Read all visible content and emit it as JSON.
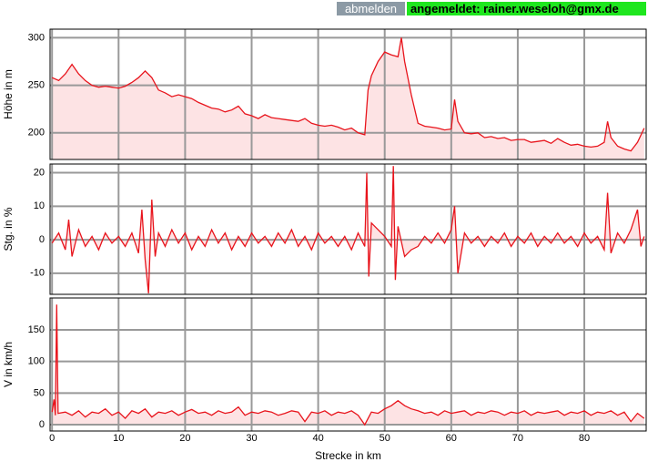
{
  "header": {
    "logout": "abmelden",
    "status": "angemeldet: rainer.weseloh@gmx.de"
  },
  "chart_data": [
    {
      "type": "line",
      "ylabel": "Höhe in m",
      "color": "#e8141c",
      "area_color": "#fde3e4",
      "grid": true,
      "xlim": [
        -0.3,
        89.3
      ],
      "xticks": [
        0,
        10,
        20,
        30,
        40,
        50,
        60,
        70,
        80
      ],
      "ylim": [
        172,
        309
      ],
      "yticks": [
        200,
        250,
        300
      ],
      "x": [
        0,
        1,
        2,
        3,
        4,
        5,
        6,
        7,
        8,
        9,
        10,
        11,
        12,
        13,
        14,
        15,
        16,
        17,
        18,
        19,
        20,
        21,
        22,
        23,
        24,
        25,
        26,
        27,
        28,
        29,
        30,
        31,
        32,
        33,
        34,
        35,
        36,
        37,
        38,
        39,
        40,
        41,
        42,
        43,
        44,
        45,
        46,
        47,
        47.5,
        48,
        49,
        50,
        51,
        52,
        52.5,
        53,
        54,
        55,
        56,
        57,
        58,
        59,
        60,
        60.5,
        61,
        62,
        63,
        64,
        65,
        66,
        67,
        68,
        69,
        70,
        71,
        72,
        73,
        74,
        75,
        76,
        77,
        78,
        79,
        80,
        81,
        82,
        83,
        83.5,
        84,
        85,
        86,
        87,
        88,
        89
      ],
      "values": [
        258,
        255,
        262,
        272,
        262,
        255,
        250,
        248,
        249,
        248,
        247,
        249,
        253,
        258,
        265,
        258,
        245,
        242,
        238,
        240,
        238,
        236,
        232,
        229,
        226,
        225,
        222,
        224,
        228,
        220,
        218,
        215,
        219,
        216,
        215,
        214,
        213,
        212,
        215,
        210,
        208,
        207,
        208,
        206,
        203,
        205,
        200,
        198,
        245,
        260,
        275,
        285,
        282,
        280,
        300,
        275,
        240,
        210,
        207,
        206,
        205,
        203,
        204,
        235,
        212,
        200,
        199,
        200,
        195,
        196,
        194,
        195,
        192,
        193,
        193,
        190,
        191,
        192,
        189,
        194,
        190,
        187,
        188,
        186,
        185,
        186,
        190,
        212,
        195,
        186,
        183,
        181,
        190,
        205
      ]
    },
    {
      "type": "line",
      "ylabel": "Stg. in %",
      "color": "#e8141c",
      "area_color": "#fde3e4",
      "grid": true,
      "xlim": [
        -0.3,
        89.3
      ],
      "xticks": [
        0,
        10,
        20,
        30,
        40,
        50,
        60,
        70,
        80
      ],
      "ylim": [
        -16.3,
        22.6
      ],
      "yticks": [
        -10,
        0,
        10,
        20
      ],
      "x": [
        0,
        1,
        2,
        2.5,
        3,
        4,
        5,
        6,
        7,
        8,
        9,
        10,
        11,
        12,
        13,
        13.5,
        14,
        14.5,
        15,
        15.5,
        16,
        17,
        18,
        19,
        20,
        21,
        22,
        23,
        24,
        25,
        26,
        27,
        28,
        29,
        30,
        31,
        32,
        33,
        34,
        35,
        36,
        37,
        38,
        39,
        40,
        41,
        42,
        43,
        44,
        45,
        46,
        47,
        47.3,
        47.6,
        48,
        49,
        50,
        51,
        51.3,
        51.6,
        52,
        53,
        54,
        55,
        56,
        57,
        58,
        59,
        60,
        60.5,
        61,
        62,
        63,
        64,
        65,
        66,
        67,
        68,
        69,
        70,
        71,
        72,
        73,
        74,
        75,
        76,
        77,
        78,
        79,
        80,
        81,
        82,
        83,
        83.5,
        84,
        85,
        86,
        87,
        88,
        88.5,
        89
      ],
      "values": [
        -1,
        2,
        -3,
        6,
        -5,
        3,
        -2,
        1,
        -3,
        2,
        -1,
        1,
        -2,
        2,
        -4,
        9,
        -6,
        -16,
        12,
        -5,
        2,
        -2,
        3,
        -1,
        2,
        -3,
        1,
        -2,
        3,
        -1,
        2,
        -3,
        1,
        -2,
        2,
        -1,
        1,
        -2,
        2,
        -1,
        3,
        -2,
        1,
        -3,
        2,
        -1,
        1,
        -2,
        1,
        -3,
        2,
        -2,
        20,
        -11,
        5,
        3,
        1,
        -2,
        22,
        -12,
        4,
        -5,
        -3,
        -2,
        1,
        -1,
        2,
        -1,
        3,
        10,
        -10,
        2,
        -1,
        1,
        -2,
        1,
        -1,
        2,
        -2,
        1,
        -1,
        2,
        -2,
        1,
        -1,
        2,
        -1,
        1,
        -2,
        2,
        -1,
        1,
        -3,
        14,
        -4,
        2,
        -1,
        3,
        9,
        -2,
        1
      ]
    },
    {
      "type": "line",
      "ylabel": "V in km/h",
      "xlabel": "Strecke in km",
      "color": "#e8141c",
      "area_color": "#fde3e4",
      "grid": true,
      "xlim": [
        -0.3,
        89.3
      ],
      "xticks": [
        0,
        10,
        20,
        30,
        40,
        50,
        60,
        70,
        80
      ],
      "ylim": [
        -10,
        200.4
      ],
      "yticks": [
        0,
        50,
        100,
        150
      ],
      "x": [
        0,
        0.3,
        0.5,
        0.7,
        0.9,
        2,
        3,
        4,
        5,
        6,
        7,
        8,
        9,
        10,
        11,
        12,
        13,
        14,
        15,
        16,
        17,
        18,
        19,
        20,
        21,
        22,
        23,
        24,
        25,
        26,
        27,
        28,
        29,
        30,
        31,
        32,
        33,
        34,
        35,
        36,
        37,
        38,
        39,
        40,
        41,
        42,
        43,
        44,
        45,
        46,
        47,
        48,
        49,
        50,
        51,
        52,
        53,
        54,
        55,
        56,
        57,
        58,
        59,
        60,
        61,
        62,
        63,
        64,
        65,
        66,
        67,
        68,
        69,
        70,
        71,
        72,
        73,
        74,
        75,
        76,
        77,
        78,
        79,
        80,
        81,
        82,
        83,
        84,
        85,
        86,
        87,
        88,
        89
      ],
      "values": [
        20,
        40,
        15,
        190,
        18,
        20,
        15,
        22,
        12,
        20,
        18,
        25,
        15,
        20,
        10,
        22,
        18,
        25,
        12,
        20,
        18,
        22,
        15,
        20,
        24,
        18,
        20,
        15,
        22,
        18,
        20,
        28,
        15,
        20,
        18,
        22,
        20,
        15,
        18,
        22,
        20,
        5,
        20,
        18,
        22,
        15,
        20,
        18,
        22,
        15,
        0,
        20,
        18,
        25,
        30,
        38,
        30,
        25,
        22,
        18,
        20,
        15,
        22,
        18,
        20,
        22,
        15,
        20,
        18,
        22,
        20,
        15,
        20,
        18,
        22,
        15,
        20,
        18,
        20,
        22,
        15,
        20,
        18,
        22,
        15,
        20,
        18,
        22,
        15,
        20,
        5,
        18,
        10
      ]
    }
  ]
}
